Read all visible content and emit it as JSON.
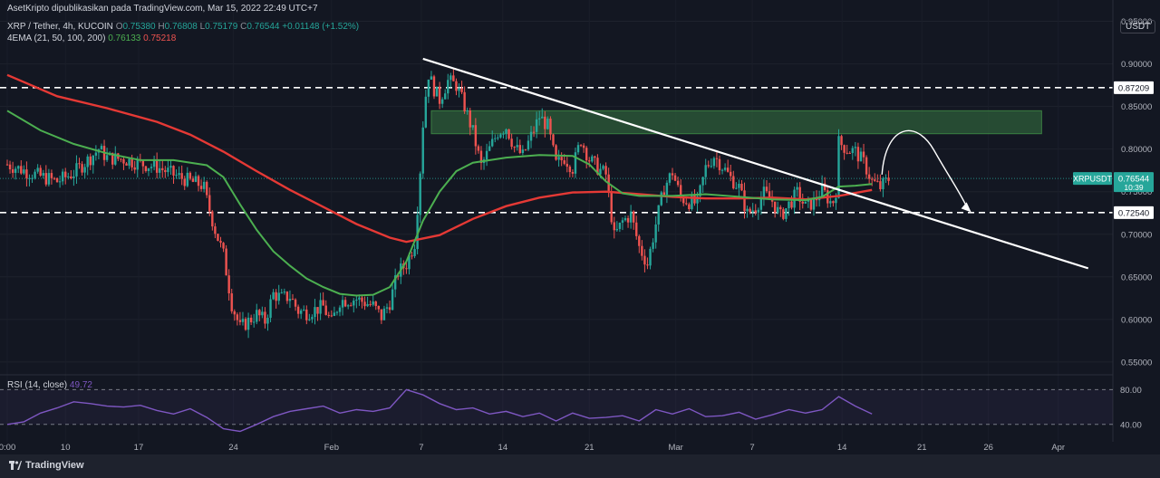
{
  "header": {
    "published": "AsetKripto dipublikasikan pada TradingView.com, Mar 15, 2022 22:49 UTC+7",
    "symbol": "XRP / Tether, 4h, KUCOIN",
    "o_label": "O",
    "o_value": "0.75380",
    "h_label": "H",
    "h_value": "0.76808",
    "l_label": "L",
    "l_value": "0.75179",
    "c_label": "C",
    "c_value": "0.76544",
    "change": "+0.01148 (+1.52%)",
    "ema_label": "4EMA (21, 50, 100, 200)",
    "ema_value_1": "0.76133",
    "ema_value_2": "0.75218"
  },
  "rsi_panel": {
    "label": "RSI (14, close)",
    "value": "49.72"
  },
  "footer": {
    "brand": "TradingView"
  },
  "colors": {
    "up": "#26a69a",
    "down": "#ef5350",
    "ema_short": "#4caf50",
    "ema_long": "#e53935",
    "rsi": "#7e57c2",
    "zone": "#2e5d3a",
    "bg": "#131722"
  },
  "chart_data": {
    "type": "candlestick",
    "unit": "USDT",
    "y_ticks": [
      "0.55000",
      "0.60000",
      "0.65000",
      "0.70000",
      "0.75000",
      "0.80000",
      "0.85000",
      "0.90000",
      "0.95000"
    ],
    "ylim": [
      0.535,
      0.975
    ],
    "x_tick_labels": [
      "0:00",
      "10",
      "17",
      "24",
      "Feb",
      "7",
      "14",
      "21",
      "Mar",
      "7",
      "14",
      "21",
      "26",
      "Apr"
    ],
    "price_tag": {
      "symbol": "XRPUSDT",
      "price": "0.76544",
      "countdown": "10:39"
    },
    "horizontal_levels": [
      {
        "label": "0.87209",
        "value": 0.87209
      },
      {
        "label": "0.72540",
        "value": 0.7254
      }
    ],
    "resistance_zone": {
      "from": 0.818,
      "to": 0.845,
      "start_day": 25.5,
      "end_day": 62.2
    },
    "trendline": {
      "start": [
        25.0,
        0.906
      ],
      "end": [
        65.0,
        0.66
      ]
    },
    "projection_arrow": {
      "peak": [
        53.0,
        0.82
      ],
      "end": [
        57.8,
        0.728
      ]
    },
    "ema_short_path": [
      [
        0,
        0.845
      ],
      [
        2,
        0.822
      ],
      [
        4,
        0.806
      ],
      [
        6,
        0.795
      ],
      [
        8,
        0.787
      ],
      [
        10,
        0.787
      ],
      [
        12,
        0.781
      ],
      [
        13,
        0.767
      ],
      [
        14,
        0.735
      ],
      [
        15,
        0.705
      ],
      [
        16,
        0.68
      ],
      [
        17,
        0.663
      ],
      [
        18,
        0.648
      ],
      [
        19,
        0.638
      ],
      [
        20,
        0.63
      ],
      [
        21,
        0.628
      ],
      [
        22,
        0.629
      ],
      [
        23,
        0.638
      ],
      [
        24,
        0.668
      ],
      [
        25,
        0.716
      ],
      [
        26,
        0.75
      ],
      [
        27,
        0.774
      ],
      [
        28,
        0.784
      ],
      [
        30,
        0.79
      ],
      [
        32,
        0.793
      ],
      [
        34,
        0.792
      ],
      [
        35,
        0.782
      ],
      [
        36,
        0.762
      ],
      [
        37,
        0.748
      ],
      [
        38,
        0.745
      ],
      [
        40,
        0.745
      ],
      [
        42,
        0.747
      ],
      [
        44,
        0.744
      ],
      [
        46,
        0.741
      ],
      [
        48,
        0.74
      ],
      [
        49,
        0.744
      ],
      [
        50,
        0.756
      ],
      [
        51,
        0.757
      ],
      [
        52,
        0.759
      ]
    ],
    "ema_long_path": [
      [
        0,
        0.887
      ],
      [
        3,
        0.862
      ],
      [
        6,
        0.848
      ],
      [
        9,
        0.832
      ],
      [
        11,
        0.817
      ],
      [
        13,
        0.797
      ],
      [
        15,
        0.774
      ],
      [
        17,
        0.752
      ],
      [
        19,
        0.732
      ],
      [
        21,
        0.712
      ],
      [
        23,
        0.696
      ],
      [
        24,
        0.691
      ],
      [
        26,
        0.699
      ],
      [
        28,
        0.718
      ],
      [
        30,
        0.733
      ],
      [
        32,
        0.743
      ],
      [
        34,
        0.749
      ],
      [
        36,
        0.75
      ],
      [
        38,
        0.747
      ],
      [
        40,
        0.744
      ],
      [
        42,
        0.742
      ],
      [
        44,
        0.742
      ],
      [
        46,
        0.743
      ],
      [
        48,
        0.741
      ],
      [
        50,
        0.745
      ],
      [
        52,
        0.752
      ]
    ],
    "rsi_path": [
      [
        0,
        40
      ],
      [
        1,
        43
      ],
      [
        2,
        53
      ],
      [
        3,
        59
      ],
      [
        4,
        66
      ],
      [
        5,
        64
      ],
      [
        6,
        61
      ],
      [
        7,
        60
      ],
      [
        8,
        62
      ],
      [
        9,
        56
      ],
      [
        10,
        52
      ],
      [
        11,
        58
      ],
      [
        12,
        48
      ],
      [
        13,
        35
      ],
      [
        14,
        32
      ],
      [
        15,
        40
      ],
      [
        16,
        49
      ],
      [
        17,
        55
      ],
      [
        18,
        58
      ],
      [
        19,
        61
      ],
      [
        20,
        53
      ],
      [
        21,
        57
      ],
      [
        22,
        55
      ],
      [
        23,
        59
      ],
      [
        24,
        80
      ],
      [
        25,
        74
      ],
      [
        26,
        64
      ],
      [
        27,
        57
      ],
      [
        28,
        59
      ],
      [
        29,
        52
      ],
      [
        30,
        55
      ],
      [
        31,
        49
      ],
      [
        32,
        53
      ],
      [
        33,
        44
      ],
      [
        34,
        53
      ],
      [
        35,
        47
      ],
      [
        36,
        48
      ],
      [
        37,
        50
      ],
      [
        38,
        44
      ],
      [
        39,
        57
      ],
      [
        40,
        52
      ],
      [
        41,
        58
      ],
      [
        42,
        49
      ],
      [
        43,
        50
      ],
      [
        44,
        54
      ],
      [
        45,
        46
      ],
      [
        46,
        51
      ],
      [
        47,
        57
      ],
      [
        48,
        53
      ],
      [
        49,
        57
      ],
      [
        50,
        72
      ],
      [
        51,
        61
      ],
      [
        52,
        52
      ]
    ],
    "rsi_levels": [
      80,
      40
    ],
    "rsi_ylim": [
      20,
      95
    ],
    "candles_close_path": [
      [
        0.0,
        0.782
      ],
      [
        1.0,
        0.775
      ],
      [
        2.0,
        0.768
      ],
      [
        3.0,
        0.762
      ],
      [
        4.0,
        0.772
      ],
      [
        5.0,
        0.79
      ],
      [
        5.5,
        0.8
      ],
      [
        6.0,
        0.79
      ],
      [
        7.0,
        0.788
      ],
      [
        8.0,
        0.783
      ],
      [
        9.0,
        0.779
      ],
      [
        10.0,
        0.77
      ],
      [
        11.0,
        0.762
      ],
      [
        11.8,
        0.757
      ],
      [
        12.0,
        0.74
      ],
      [
        12.5,
        0.705
      ],
      [
        13.0,
        0.676
      ],
      [
        13.5,
        0.618
      ],
      [
        14.0,
        0.59
      ],
      [
        14.5,
        0.598
      ],
      [
        15.0,
        0.606
      ],
      [
        15.5,
        0.598
      ],
      [
        16.0,
        0.63
      ],
      [
        16.5,
        0.625
      ],
      [
        17.0,
        0.627
      ],
      [
        17.5,
        0.61
      ],
      [
        18.0,
        0.608
      ],
      [
        19.0,
        0.615
      ],
      [
        19.5,
        0.596
      ],
      [
        20.0,
        0.622
      ],
      [
        21.0,
        0.624
      ],
      [
        22.0,
        0.616
      ],
      [
        22.5,
        0.603
      ],
      [
        23.0,
        0.62
      ],
      [
        23.5,
        0.655
      ],
      [
        24.0,
        0.665
      ],
      [
        24.5,
        0.69
      ],
      [
        24.8,
        0.765
      ],
      [
        25.0,
        0.83
      ],
      [
        25.3,
        0.89
      ],
      [
        25.6,
        0.873
      ],
      [
        26.0,
        0.858
      ],
      [
        26.5,
        0.88
      ],
      [
        27.0,
        0.875
      ],
      [
        27.5,
        0.85
      ],
      [
        28.0,
        0.82
      ],
      [
        28.5,
        0.78
      ],
      [
        29.0,
        0.8
      ],
      [
        29.5,
        0.82
      ],
      [
        30.0,
        0.826
      ],
      [
        30.5,
        0.802
      ],
      [
        31.0,
        0.792
      ],
      [
        31.5,
        0.815
      ],
      [
        32.0,
        0.838
      ],
      [
        32.5,
        0.827
      ],
      [
        33.0,
        0.782
      ],
      [
        33.5,
        0.79
      ],
      [
        34.0,
        0.778
      ],
      [
        34.5,
        0.811
      ],
      [
        35.0,
        0.788
      ],
      [
        35.5,
        0.778
      ],
      [
        36.0,
        0.77
      ],
      [
        36.5,
        0.697
      ],
      [
        37.0,
        0.715
      ],
      [
        37.5,
        0.723
      ],
      [
        38.0,
        0.685
      ],
      [
        38.5,
        0.665
      ],
      [
        39.0,
        0.712
      ],
      [
        39.5,
        0.755
      ],
      [
        40.0,
        0.773
      ],
      [
        40.5,
        0.743
      ],
      [
        41.0,
        0.738
      ],
      [
        41.5,
        0.736
      ],
      [
        42.0,
        0.778
      ],
      [
        42.5,
        0.792
      ],
      [
        43.0,
        0.78
      ],
      [
        43.5,
        0.766
      ],
      [
        44.0,
        0.755
      ],
      [
        44.5,
        0.724
      ],
      [
        45.0,
        0.732
      ],
      [
        45.5,
        0.748
      ],
      [
        46.0,
        0.739
      ],
      [
        46.5,
        0.721
      ],
      [
        47.0,
        0.735
      ],
      [
        47.5,
        0.748
      ],
      [
        48.0,
        0.732
      ],
      [
        48.5,
        0.738
      ],
      [
        49.0,
        0.752
      ],
      [
        49.5,
        0.738
      ],
      [
        49.8,
        0.74
      ],
      [
        50.0,
        0.808
      ],
      [
        50.5,
        0.8
      ],
      [
        51.0,
        0.797
      ],
      [
        51.5,
        0.784
      ],
      [
        52.0,
        0.762
      ],
      [
        52.5,
        0.755
      ],
      [
        53.0,
        0.765
      ]
    ]
  }
}
